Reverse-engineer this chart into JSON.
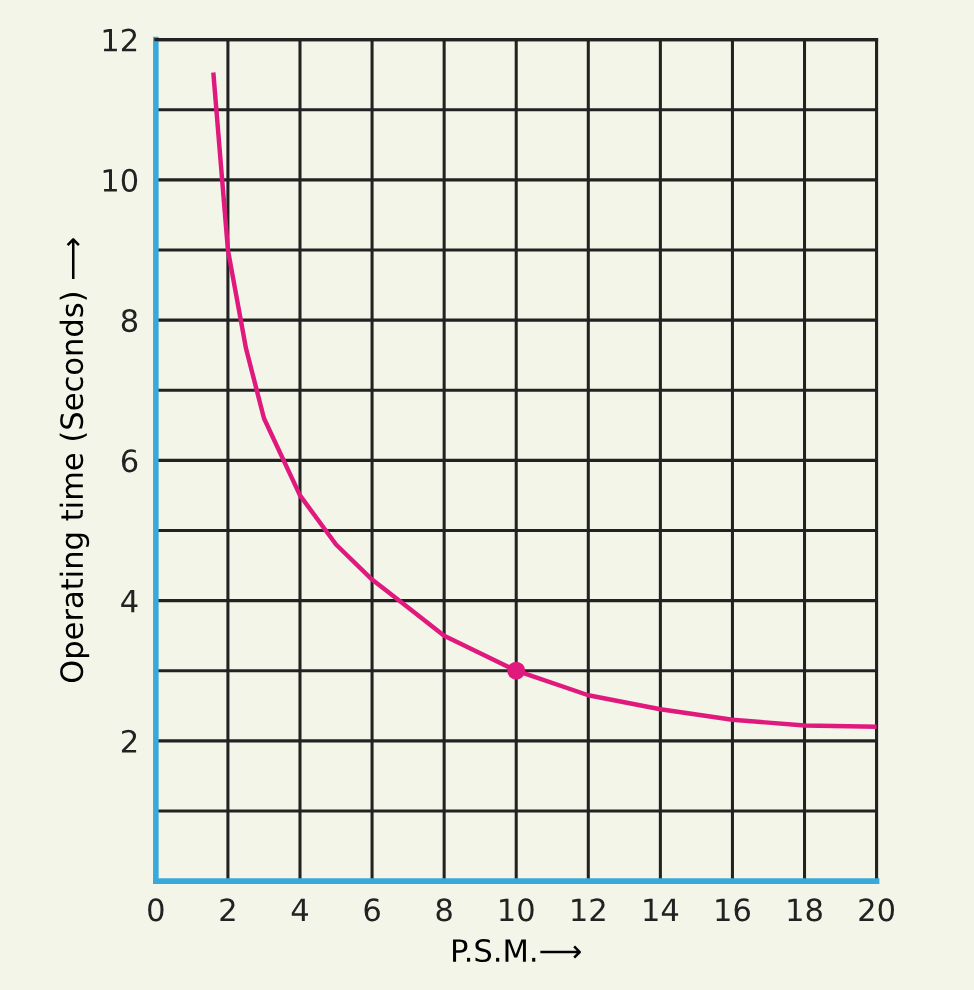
{
  "chart_data": {
    "type": "line",
    "xlabel": "P.S.M.⟶",
    "ylabel": "Operating time (Seconds) ⟶",
    "series": [
      {
        "color": "#e0197d",
        "marker": "none",
        "x": [
          1.6,
          2,
          2.5,
          3,
          4,
          5,
          6,
          7,
          8,
          9,
          10,
          12,
          14,
          16,
          18,
          20
        ],
        "values": [
          11.5,
          9,
          7.6,
          6.6,
          5.5,
          4.8,
          4.3,
          3.9,
          3.5,
          3.25,
          3.0,
          2.65,
          2.45,
          2.3,
          2.22,
          2.2
        ]
      },
      {
        "type": "scatter",
        "color": "#e0197d",
        "marker": "circle",
        "x": [
          10
        ],
        "values": [
          3.0
        ]
      }
    ],
    "xlim": [
      0,
      20
    ],
    "ylim": [
      0,
      12
    ],
    "xticks": [
      0,
      2,
      4,
      6,
      8,
      10,
      12,
      14,
      16,
      18,
      20
    ],
    "yticks": [
      {
        "value": 1,
        "label": null
      },
      2,
      {
        "value": 3,
        "label": null
      },
      4,
      {
        "value": 5,
        "label": null
      },
      6,
      {
        "value": 7,
        "label": null
      },
      8,
      {
        "value": 9,
        "label": null
      },
      10,
      {
        "value": 11,
        "label": null
      },
      12
    ],
    "grid": true
  }
}
